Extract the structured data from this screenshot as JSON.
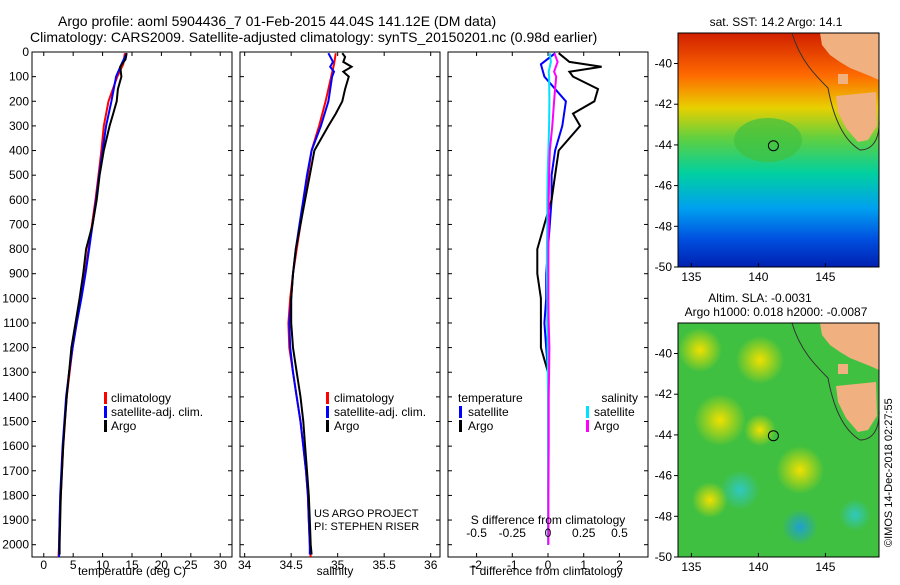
{
  "titles": {
    "line1": "Argo profile: aoml 5904436_7 01-Feb-2015 44.04S 141.12E (DM data)",
    "line2": "Climatology: CARS2009. Satellite-adjusted climatology: synTS_20150201.nc (0.98d earlier)"
  },
  "legend": {
    "climatology": "climatology",
    "satellite_adj": "satellite-adj. clim.",
    "argo": "Argo",
    "temperature": "temperature",
    "salinity": "salinity",
    "satellite": "satellite"
  },
  "notes": {
    "project": "US ARGO PROJECT",
    "pi": "PI: STEPHEN RISER",
    "s_diff": "S difference from climatology",
    "timestamp": "©IMOS 14-Dec-2018 02:27:55"
  },
  "map_titles": {
    "sst": "sat. SST: 14.2 Argo: 14.1",
    "sla": "Altim. SLA: -0.0031",
    "argo_h": "Argo h1000: 0.018 h2000: -0.0087"
  },
  "colors": {
    "climatology": "#ff0000",
    "satellite": "#0000ff",
    "argo": "#000000",
    "s_satellite": "#00e0ff",
    "s_argo": "#ff00ff"
  },
  "chart_data": [
    {
      "type": "line",
      "xlabel": "temperature (deg C)",
      "ylabel": "",
      "xlim": [
        -2,
        32
      ],
      "ylim": [
        2050,
        0
      ],
      "xticks": [
        "0",
        "5",
        "10",
        "15",
        "20",
        "25",
        "30"
      ],
      "yticks": [
        "0",
        "100",
        "200",
        "300",
        "400",
        "500",
        "600",
        "700",
        "800",
        "900",
        "1000",
        "1100",
        "1200",
        "1300",
        "1400",
        "1500",
        "1600",
        "1700",
        "1800",
        "1900",
        "2000"
      ],
      "series": [
        {
          "name": "climatology",
          "color": "#ff0000",
          "points": [
            [
              13.8,
              5
            ],
            [
              13.5,
              50
            ],
            [
              12.5,
              100
            ],
            [
              11,
              200
            ],
            [
              10.2,
              300
            ],
            [
              9.8,
              400
            ],
            [
              9.3,
              500
            ],
            [
              8.8,
              600
            ],
            [
              8.2,
              700
            ],
            [
              7.6,
              800
            ],
            [
              7,
              900
            ],
            [
              6.3,
              1000
            ],
            [
              5.6,
              1100
            ],
            [
              4.9,
              1200
            ],
            [
              4.4,
              1300
            ],
            [
              3.9,
              1400
            ],
            [
              3.6,
              1500
            ],
            [
              3.3,
              1600
            ],
            [
              3.1,
              1700
            ],
            [
              2.9,
              1800
            ],
            [
              2.7,
              1900
            ],
            [
              2.6,
              2000
            ],
            [
              2.5,
              2050
            ]
          ]
        },
        {
          "name": "satellite-adj. clim.",
          "color": "#0000ff",
          "points": [
            [
              14.1,
              5
            ],
            [
              13.2,
              50
            ],
            [
              12.3,
              100
            ],
            [
              11.5,
              200
            ],
            [
              10.6,
              300
            ],
            [
              10,
              400
            ],
            [
              9.4,
              500
            ],
            [
              8.9,
              600
            ],
            [
              8.3,
              700
            ],
            [
              7.7,
              800
            ],
            [
              7.1,
              900
            ],
            [
              6.4,
              1000
            ],
            [
              5.6,
              1100
            ],
            [
              4.9,
              1200
            ],
            [
              4.3,
              1300
            ],
            [
              3.8,
              1400
            ],
            [
              3.5,
              1500
            ],
            [
              3.2,
              1600
            ],
            [
              3,
              1700
            ],
            [
              2.8,
              1800
            ],
            [
              2.7,
              1900
            ],
            [
              2.6,
              2000
            ],
            [
              2.6,
              2050
            ]
          ]
        },
        {
          "name": "Argo",
          "color": "#000000",
          "points": [
            [
              14.1,
              5
            ],
            [
              13.9,
              30
            ],
            [
              13,
              60
            ],
            [
              13.2,
              100
            ],
            [
              12.6,
              150
            ],
            [
              12.4,
              200
            ],
            [
              11.8,
              250
            ],
            [
              11.2,
              300
            ],
            [
              10.2,
              400
            ],
            [
              9.5,
              500
            ],
            [
              9,
              600
            ],
            [
              8.3,
              700
            ],
            [
              7.2,
              800
            ],
            [
              6.7,
              900
            ],
            [
              6.1,
              1000
            ],
            [
              5.4,
              1100
            ],
            [
              4.7,
              1200
            ],
            [
              4.3,
              1300
            ],
            [
              3.9,
              1400
            ],
            [
              3.6,
              1500
            ],
            [
              3.3,
              1600
            ],
            [
              3.1,
              1700
            ],
            [
              2.9,
              1800
            ],
            [
              2.8,
              1900
            ],
            [
              2.7,
              2000
            ],
            [
              2.7,
              2040
            ]
          ]
        }
      ]
    },
    {
      "type": "line",
      "xlabel": "salinity",
      "xlim": [
        33.95,
        36.1
      ],
      "ylim": [
        2050,
        0
      ],
      "xticks": [
        "34",
        "34.5",
        "35",
        "35.5",
        "36"
      ],
      "series": [
        {
          "name": "climatology",
          "color": "#ff0000",
          "points": [
            [
              34.98,
              5
            ],
            [
              34.96,
              50
            ],
            [
              34.93,
              100
            ],
            [
              34.87,
              200
            ],
            [
              34.8,
              300
            ],
            [
              34.72,
              400
            ],
            [
              34.68,
              500
            ],
            [
              34.64,
              600
            ],
            [
              34.6,
              700
            ],
            [
              34.56,
              800
            ],
            [
              34.52,
              900
            ],
            [
              34.49,
              1000
            ],
            [
              34.47,
              1100
            ],
            [
              34.48,
              1200
            ],
            [
              34.52,
              1300
            ],
            [
              34.56,
              1400
            ],
            [
              34.6,
              1500
            ],
            [
              34.63,
              1600
            ],
            [
              34.66,
              1700
            ],
            [
              34.68,
              1800
            ],
            [
              34.69,
              1900
            ],
            [
              34.7,
              2000
            ],
            [
              34.71,
              2050
            ]
          ]
        },
        {
          "name": "satellite-adj. clim.",
          "color": "#0000ff",
          "points": [
            [
              34.9,
              5
            ],
            [
              34.95,
              40
            ],
            [
              34.92,
              60
            ],
            [
              34.96,
              80
            ],
            [
              34.94,
              100
            ],
            [
              34.9,
              200
            ],
            [
              34.82,
              300
            ],
            [
              34.72,
              400
            ],
            [
              34.67,
              500
            ],
            [
              34.63,
              600
            ],
            [
              34.59,
              700
            ],
            [
              34.55,
              800
            ],
            [
              34.52,
              900
            ],
            [
              34.5,
              1000
            ],
            [
              34.48,
              1100
            ],
            [
              34.49,
              1200
            ],
            [
              34.52,
              1300
            ],
            [
              34.56,
              1400
            ],
            [
              34.6,
              1500
            ],
            [
              34.63,
              1600
            ],
            [
              34.66,
              1700
            ],
            [
              34.68,
              1800
            ],
            [
              34.69,
              1900
            ],
            [
              34.7,
              2000
            ],
            [
              34.7,
              2040
            ]
          ]
        },
        {
          "name": "Argo",
          "color": "#000000",
          "points": [
            [
              35.05,
              5
            ],
            [
              35.08,
              20
            ],
            [
              35.06,
              40
            ],
            [
              35.15,
              60
            ],
            [
              35.06,
              80
            ],
            [
              35.12,
              100
            ],
            [
              35.08,
              150
            ],
            [
              35.05,
              200
            ],
            [
              34.98,
              250
            ],
            [
              34.9,
              300
            ],
            [
              34.75,
              400
            ],
            [
              34.7,
              500
            ],
            [
              34.65,
              600
            ],
            [
              34.6,
              700
            ],
            [
              34.55,
              800
            ],
            [
              34.52,
              900
            ],
            [
              34.5,
              1000
            ],
            [
              34.5,
              1100
            ],
            [
              34.52,
              1200
            ],
            [
              34.56,
              1300
            ],
            [
              34.6,
              1400
            ],
            [
              34.63,
              1500
            ],
            [
              34.65,
              1600
            ],
            [
              34.67,
              1700
            ],
            [
              34.69,
              1800
            ],
            [
              34.7,
              1900
            ],
            [
              34.71,
              2000
            ],
            [
              34.72,
              2040
            ]
          ]
        }
      ]
    },
    {
      "type": "line",
      "xlabel": "T difference from climatology",
      "xlabel2": "S difference from climatology",
      "xlim": [
        -2.8,
        2.8
      ],
      "ylim": [
        2050,
        0
      ],
      "xticks": [
        "-2",
        "-1",
        "0",
        "1",
        "2"
      ],
      "xticks2": [
        "-0.5",
        "-0.25",
        "0",
        "0.25",
        "0.5"
      ],
      "series": [
        {
          "name": "temperature satellite",
          "color": "#0000ff",
          "points": [
            [
              0.2,
              5
            ],
            [
              -0.2,
              50
            ],
            [
              -0.1,
              100
            ],
            [
              0.5,
              200
            ],
            [
              0.4,
              300
            ],
            [
              0.2,
              400
            ],
            [
              0.1,
              500
            ],
            [
              0.1,
              600
            ],
            [
              0.05,
              700
            ],
            [
              0,
              800
            ],
            [
              -0.05,
              900
            ],
            [
              -0.05,
              1000
            ],
            [
              -0.1,
              1100
            ],
            [
              -0.05,
              1200
            ],
            [
              0,
              1300
            ],
            [
              0,
              1500
            ],
            [
              0,
              1700
            ],
            [
              0,
              1900
            ],
            [
              0,
              2000
            ]
          ]
        },
        {
          "name": "temperature Argo",
          "color": "#000000",
          "points": [
            [
              0.3,
              5
            ],
            [
              0.6,
              40
            ],
            [
              1.5,
              60
            ],
            [
              0.6,
              80
            ],
            [
              0.7,
              100
            ],
            [
              1.4,
              150
            ],
            [
              1.3,
              200
            ],
            [
              0.7,
              250
            ],
            [
              0.9,
              300
            ],
            [
              0.3,
              400
            ],
            [
              0.2,
              500
            ],
            [
              0.1,
              600
            ],
            [
              -0.1,
              700
            ],
            [
              -0.3,
              800
            ],
            [
              -0.3,
              900
            ],
            [
              -0.2,
              1000
            ],
            [
              -0.2,
              1100
            ],
            [
              -0.2,
              1200
            ],
            [
              0,
              1300
            ],
            [
              0,
              1400
            ],
            [
              0,
              1500
            ],
            [
              0,
              1700
            ],
            [
              0,
              1900
            ],
            [
              0,
              2000
            ]
          ]
        },
        {
          "name": "salinity satellite",
          "color": "#00e0ff",
          "points": [
            [
              0.05,
              5
            ],
            [
              0.08,
              40
            ],
            [
              0.02,
              80
            ],
            [
              0.03,
              100
            ],
            [
              0.04,
              200
            ],
            [
              0.03,
              300
            ],
            [
              0.01,
              400
            ],
            [
              -0.01,
              500
            ],
            [
              -0.02,
              600
            ],
            [
              -0.02,
              700
            ],
            [
              -0.03,
              800
            ],
            [
              -0.03,
              900
            ],
            [
              -0.02,
              1000
            ],
            [
              -0.02,
              1100
            ],
            [
              -0.01,
              1200
            ],
            [
              0,
              1400
            ],
            [
              0,
              1600
            ],
            [
              0,
              1800
            ],
            [
              0,
              2000
            ]
          ]
        },
        {
          "name": "salinity Argo",
          "color": "#ff00ff",
          "points": [
            [
              0.18,
              5
            ],
            [
              0.27,
              40
            ],
            [
              0.17,
              80
            ],
            [
              0.23,
              100
            ],
            [
              0.2,
              150
            ],
            [
              0.17,
              200
            ],
            [
              0.12,
              300
            ],
            [
              0.05,
              400
            ],
            [
              0.03,
              500
            ],
            [
              0.02,
              600
            ],
            [
              0.02,
              700
            ],
            [
              0.01,
              800
            ],
            [
              0.01,
              900
            ],
            [
              0.01,
              1000
            ],
            [
              0.02,
              1100
            ],
            [
              0.04,
              1200
            ],
            [
              0.03,
              1300
            ],
            [
              0.02,
              1400
            ],
            [
              0.02,
              1500
            ],
            [
              0.02,
              1600
            ],
            [
              0.01,
              1800
            ],
            [
              0.01,
              2000
            ]
          ]
        }
      ]
    },
    {
      "type": "heatmap",
      "title": "sat. SST: 14.2 Argo: 14.1",
      "xlim": [
        134,
        149
      ],
      "ylim": [
        -50,
        -38.5
      ],
      "xticks": [
        "135",
        "140",
        "145"
      ],
      "yticks": [
        "-40",
        "-42",
        "-44",
        "-46",
        "-48",
        "-50"
      ],
      "marker": [
        141.12,
        -44.04
      ]
    },
    {
      "type": "heatmap",
      "title": "Argo h1000: 0.018 h2000: -0.0087",
      "xlim": [
        134,
        149
      ],
      "ylim": [
        -50,
        -38.5
      ],
      "xticks": [
        "135",
        "140",
        "145"
      ],
      "yticks": [
        "-40",
        "-42",
        "-44",
        "-46",
        "-48",
        "-50"
      ],
      "marker": [
        141.12,
        -44.04
      ]
    }
  ]
}
